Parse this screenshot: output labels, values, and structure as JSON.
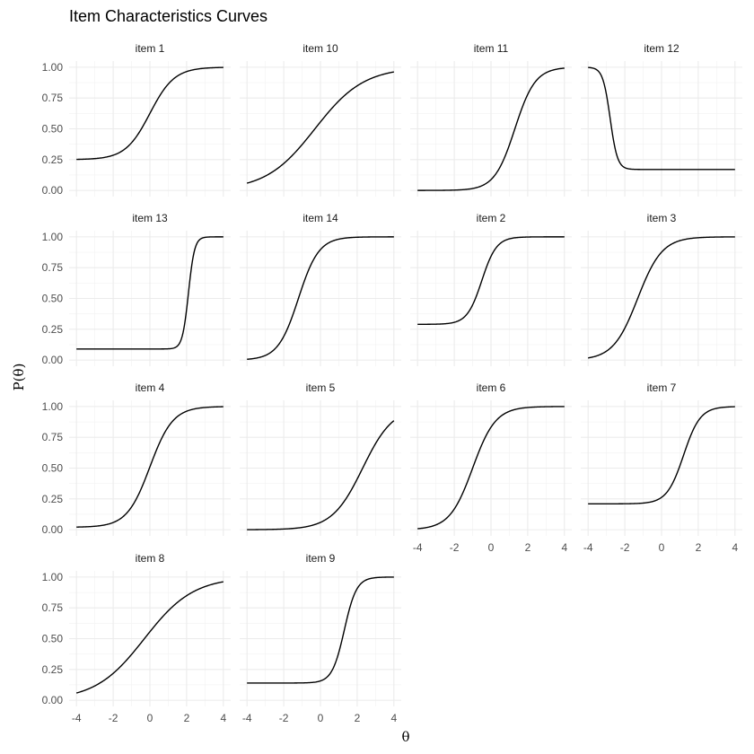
{
  "chart_data": {
    "type": "line",
    "title": "Item Characteristics Curves",
    "xlabel": "θ",
    "ylabel": "P(θ)",
    "xlim": [
      -4,
      4
    ],
    "ylim": [
      0,
      1
    ],
    "x_ticks": [
      "-4",
      "-2",
      "0",
      "2",
      "4"
    ],
    "y_ticks": [
      "0.00",
      "0.25",
      "0.50",
      "0.75",
      "1.00"
    ],
    "grid": true,
    "model_note": "each curve is P = c + (d - c) / (1 + exp(-a(θ - b))), with parameters estimated from the plot",
    "series": [
      {
        "name": "item 1",
        "a": 1.5,
        "b": 0.0,
        "c": 0.25,
        "d": 1.0
      },
      {
        "name": "item 10",
        "a": 0.75,
        "b": -0.3,
        "c": 0.0,
        "d": 1.0
      },
      {
        "name": "item 11",
        "a": 1.8,
        "b": 1.3,
        "c": 0.0,
        "d": 1.0
      },
      {
        "name": "item 12",
        "a": -5.0,
        "b": -2.8,
        "c": 0.17,
        "d": 1.0
      },
      {
        "name": "item 13",
        "a": 6.0,
        "b": 2.1,
        "c": 0.09,
        "d": 1.0
      },
      {
        "name": "item 14",
        "a": 1.8,
        "b": -1.2,
        "c": 0.0,
        "d": 1.0
      },
      {
        "name": "item 2",
        "a": 2.5,
        "b": -0.5,
        "c": 0.29,
        "d": 1.0
      },
      {
        "name": "item 3",
        "a": 1.5,
        "b": -1.3,
        "c": 0.0,
        "d": 1.0
      },
      {
        "name": "item 4",
        "a": 1.6,
        "b": 0.0,
        "c": 0.02,
        "d": 1.0
      },
      {
        "name": "item 5",
        "a": 1.2,
        "b": 2.3,
        "c": 0.0,
        "d": 1.0
      },
      {
        "name": "item 6",
        "a": 1.6,
        "b": -1.0,
        "c": 0.0,
        "d": 1.0
      },
      {
        "name": "item 7",
        "a": 2.2,
        "b": 1.2,
        "c": 0.21,
        "d": 1.0
      },
      {
        "name": "item 8",
        "a": 0.75,
        "b": -0.3,
        "c": 0.0,
        "d": 1.0
      },
      {
        "name": "item 9",
        "a": 3.0,
        "b": 1.3,
        "c": 0.14,
        "d": 1.0
      }
    ]
  }
}
